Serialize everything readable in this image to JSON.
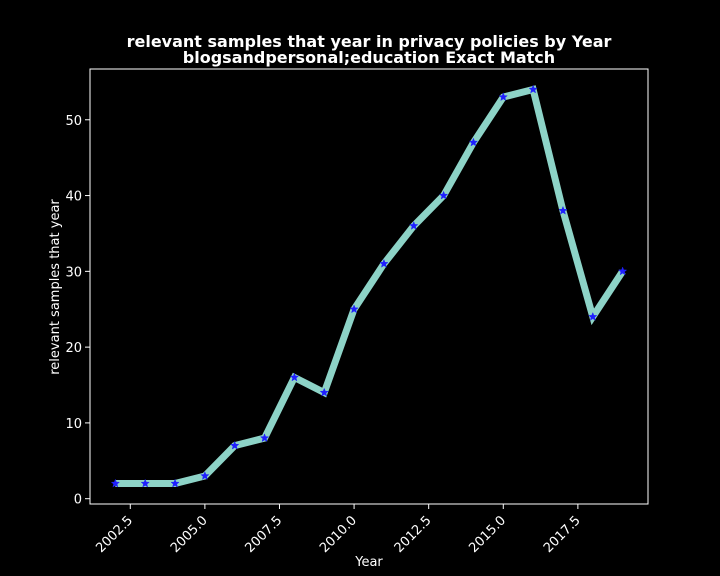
{
  "chart_data": {
    "type": "line",
    "title": "relevant samples that year in privacy policies by Year",
    "subtitle": "blogsandpersonal;education Exact Match",
    "xlabel": "Year",
    "ylabel": "relevant samples that year",
    "xlim": [
      2001.15,
      2019.85
    ],
    "ylim": [
      -0.7,
      56.7
    ],
    "x_ticks": [
      2002.5,
      2005.0,
      2007.5,
      2010.0,
      2012.5,
      2015.0,
      2017.5
    ],
    "x_tick_labels": [
      "2002.5",
      "2005.0",
      "2007.5",
      "2010.0",
      "2012.5",
      "2015.0",
      "2017.5"
    ],
    "y_ticks": [
      0,
      10,
      20,
      30,
      40,
      50
    ],
    "y_tick_labels": [
      "0",
      "10",
      "20",
      "30",
      "40",
      "50"
    ],
    "grid": false,
    "background": "#000000",
    "line_color": "#8dd3c7",
    "marker_color": "#1f1fff",
    "marker": "star",
    "x": [
      2002,
      2003,
      2004,
      2005,
      2006,
      2007,
      2008,
      2009,
      2010,
      2011,
      2012,
      2013,
      2014,
      2015,
      2016,
      2017,
      2018,
      2019
    ],
    "y": [
      2,
      2,
      2,
      3,
      7,
      8,
      16,
      14,
      25,
      31,
      36,
      40,
      47,
      53,
      54,
      38,
      24,
      30
    ]
  }
}
